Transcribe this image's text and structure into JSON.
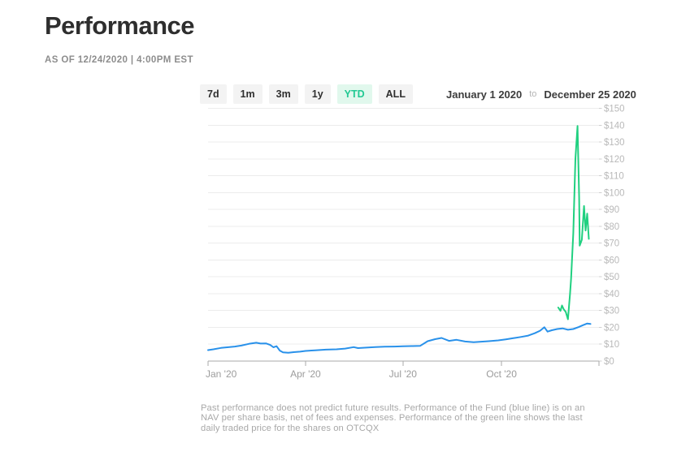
{
  "header": {
    "title": "Performance",
    "as_of": "AS OF 12/24/2020 | 4:00PM EST"
  },
  "controls": {
    "ranges": [
      {
        "label": "7d",
        "active": false
      },
      {
        "label": "1m",
        "active": false
      },
      {
        "label": "3m",
        "active": false
      },
      {
        "label": "1y",
        "active": false
      },
      {
        "label": "YTD",
        "active": true
      },
      {
        "label": "ALL",
        "active": false
      }
    ],
    "start_date": "January 1 2020",
    "to_label": "to",
    "end_date": "December 25 2020"
  },
  "footer": {
    "lines": [
      "Past performance does not predict future results. Performance of the Fund (blue line) is on an",
      "NAV per share basis, net of fees and expenses. Performance of the green line shows the last",
      "daily traded price for the shares on OTCQX"
    ]
  },
  "chart_data": {
    "type": "line",
    "title": "Performance YTD",
    "x_axis": {
      "unit": "day-of-year 2020",
      "domain_days": [
        0,
        365
      ],
      "tick_days": [
        0,
        91,
        182,
        274,
        365
      ],
      "tick_labels": [
        "Jan '20",
        "Apr '20",
        "Jul '20",
        "Oct '20",
        ""
      ]
    },
    "y_axis": {
      "min": 0,
      "max": 150,
      "step": 10,
      "tick_values": [
        0,
        10,
        20,
        30,
        40,
        50,
        60,
        70,
        80,
        90,
        100,
        110,
        120,
        130,
        140,
        150
      ],
      "tick_labels": [
        "$0",
        "$10",
        "$20",
        "$30",
        "$40",
        "$50",
        "$60",
        "$70",
        "$80",
        "$90",
        "$100",
        "$110",
        "$120",
        "$130",
        "$140",
        "$150"
      ]
    },
    "grid": true,
    "legend": "none",
    "series": [
      {
        "id": "nav",
        "name": "Fund NAV per share (blue line)",
        "color": "#2991ea",
        "points": [
          [
            0,
            6.5
          ],
          [
            5,
            7.0
          ],
          [
            12,
            7.8
          ],
          [
            18,
            8.2
          ],
          [
            25,
            8.6
          ],
          [
            31,
            9.2
          ],
          [
            38,
            10.2
          ],
          [
            45,
            10.9
          ],
          [
            49,
            10.4
          ],
          [
            54,
            10.5
          ],
          [
            58,
            9.6
          ],
          [
            61,
            8.2
          ],
          [
            64,
            8.8
          ],
          [
            67,
            6.2
          ],
          [
            70,
            5.2
          ],
          [
            75,
            4.9
          ],
          [
            80,
            5.3
          ],
          [
            86,
            5.6
          ],
          [
            91,
            6.0
          ],
          [
            100,
            6.4
          ],
          [
            110,
            6.8
          ],
          [
            120,
            7.0
          ],
          [
            128,
            7.4
          ],
          [
            136,
            8.3
          ],
          [
            140,
            7.7
          ],
          [
            148,
            8.0
          ],
          [
            156,
            8.3
          ],
          [
            165,
            8.5
          ],
          [
            174,
            8.6
          ],
          [
            182,
            8.8
          ],
          [
            190,
            8.9
          ],
          [
            198,
            9.0
          ],
          [
            205,
            11.8
          ],
          [
            212,
            13.0
          ],
          [
            218,
            13.7
          ],
          [
            225,
            12.0
          ],
          [
            232,
            12.6
          ],
          [
            240,
            11.6
          ],
          [
            248,
            11.2
          ],
          [
            255,
            11.5
          ],
          [
            262,
            11.8
          ],
          [
            271,
            12.3
          ],
          [
            278,
            12.9
          ],
          [
            285,
            13.6
          ],
          [
            292,
            14.3
          ],
          [
            299,
            15.1
          ],
          [
            305,
            16.5
          ],
          [
            310,
            18.0
          ],
          [
            314,
            20.1
          ],
          [
            317,
            17.5
          ],
          [
            321,
            18.3
          ],
          [
            326,
            19.0
          ],
          [
            331,
            19.4
          ],
          [
            336,
            18.6
          ],
          [
            341,
            19.0
          ],
          [
            346,
            20.2
          ],
          [
            350,
            21.3
          ],
          [
            354,
            22.3
          ],
          [
            357,
            22.0
          ]
        ]
      },
      {
        "id": "otcqx",
        "name": "Last daily traded price on OTCQX (green line)",
        "color": "#20d080",
        "points": [
          [
            327,
            31.8
          ],
          [
            329,
            29.8
          ],
          [
            330.5,
            33.0
          ],
          [
            332,
            30.8
          ],
          [
            334,
            29.2
          ],
          [
            336,
            24.8
          ],
          [
            338,
            40.0
          ],
          [
            339,
            49.0
          ],
          [
            341,
            76.0
          ],
          [
            343,
            120.0
          ],
          [
            345,
            139.5
          ],
          [
            346.5,
            97.0
          ],
          [
            347,
            68.5
          ],
          [
            349,
            72.0
          ],
          [
            351,
            92.0
          ],
          [
            352.5,
            77.5
          ],
          [
            354,
            87.5
          ],
          [
            355.5,
            72.5
          ]
        ]
      }
    ]
  }
}
